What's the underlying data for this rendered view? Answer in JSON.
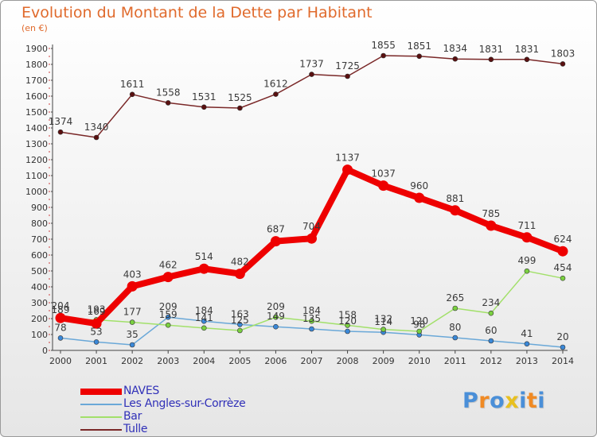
{
  "title": "Evolution du Montant de la Dette par Habitant",
  "unit": "(en €)",
  "logo": {
    "text": "Proxiti",
    "letter_colors": [
      "#4a8fd8",
      "#f08a24",
      "#4a8fd8",
      "#e8c020",
      "#4a8fd8",
      "#f08a24",
      "#4a8fd8"
    ]
  },
  "chart_data": {
    "type": "line",
    "title": "Evolution du Montant de la Dette par Habitant",
    "subtitle": "(en €)",
    "xlabel": "",
    "ylabel": "",
    "x": [
      2000,
      2001,
      2002,
      2003,
      2004,
      2005,
      2006,
      2007,
      2008,
      2009,
      2010,
      2011,
      2012,
      2013,
      2014
    ],
    "ylim": [
      0,
      1900
    ],
    "yticks": [
      0,
      100,
      200,
      300,
      400,
      500,
      600,
      700,
      800,
      900,
      1000,
      1100,
      1200,
      1300,
      1400,
      1500,
      1600,
      1700,
      1800,
      1900
    ],
    "grid": false,
    "legend": "bottom-left",
    "series": [
      {
        "name": "NAVES",
        "color": "#ee0000",
        "marker_color": "#ee0000",
        "values": [
          204,
          169,
          403,
          462,
          514,
          482,
          687,
          704,
          1137,
          1037,
          960,
          881,
          785,
          711,
          624
        ]
      },
      {
        "name": "Les Angles-sur-Corrèze",
        "color": "#6aa8d8",
        "marker_color": "#3a88d8",
        "values": [
          78,
          53,
          35,
          209,
          184,
          163,
          149,
          135,
          120,
          114,
          98,
          80,
          60,
          41,
          20
        ]
      },
      {
        "name": "Bar",
        "color": "#a2e06a",
        "marker_color": "#7ad040",
        "values": [
          189,
          193,
          177,
          159,
          141,
          125,
          209,
          184,
          158,
          132,
          120,
          265,
          234,
          499,
          454
        ]
      },
      {
        "name": "Tulle",
        "color": "#7a2828",
        "marker_color": "#5a1010",
        "values": [
          1374,
          1340,
          1611,
          1558,
          1531,
          1525,
          1612,
          1737,
          1725,
          1855,
          1851,
          1834,
          1831,
          1831,
          1803
        ]
      }
    ]
  }
}
